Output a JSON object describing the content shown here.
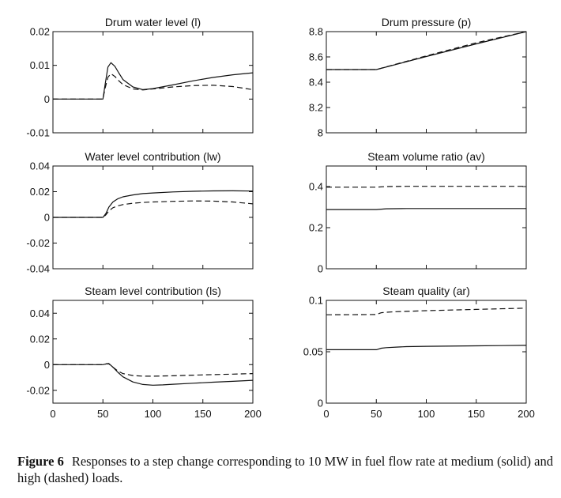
{
  "chart_data": [
    {
      "type": "line",
      "title": "Drum water level (l)",
      "xlim": [
        0,
        200
      ],
      "ylim": [
        -0.01,
        0.02
      ],
      "xticks": [],
      "yticks": [
        {
          "v": -0.01,
          "t": "-0.01"
        },
        {
          "v": 0,
          "t": "0"
        },
        {
          "v": 0.01,
          "t": "0.01"
        },
        {
          "v": 0.02,
          "t": "0.02"
        }
      ],
      "series": [
        {
          "style": "solid",
          "x": [
            0,
            50,
            52,
            55,
            58,
            62,
            66,
            70,
            80,
            90,
            100,
            120,
            140,
            160,
            180,
            200
          ],
          "y": [
            0,
            0,
            0.004,
            0.0095,
            0.0108,
            0.0097,
            0.0077,
            0.0058,
            0.0036,
            0.0028,
            0.0031,
            0.0042,
            0.0054,
            0.0064,
            0.0072,
            0.0078
          ]
        },
        {
          "style": "dashed",
          "x": [
            0,
            50,
            52,
            55,
            58,
            62,
            66,
            70,
            80,
            90,
            100,
            120,
            140,
            160,
            180,
            200
          ],
          "y": [
            0,
            0,
            0.003,
            0.0065,
            0.0075,
            0.0067,
            0.0054,
            0.0043,
            0.003,
            0.0027,
            0.003,
            0.0036,
            0.004,
            0.0041,
            0.0037,
            0.0028
          ]
        }
      ]
    },
    {
      "type": "line",
      "title": "Drum pressure (p)",
      "xlim": [
        0,
        200
      ],
      "ylim": [
        8,
        8.8
      ],
      "xticks": [],
      "yticks": [
        {
          "v": 8,
          "t": "8"
        },
        {
          "v": 8.2,
          "t": "8.2"
        },
        {
          "v": 8.4,
          "t": "8.4"
        },
        {
          "v": 8.6,
          "t": "8.6"
        },
        {
          "v": 8.8,
          "t": "8.8"
        }
      ],
      "series": [
        {
          "style": "solid",
          "x": [
            0,
            50,
            100,
            150,
            200
          ],
          "y": [
            8.5,
            8.5,
            8.603,
            8.703,
            8.8
          ]
        },
        {
          "style": "dashed",
          "x": [
            0,
            50,
            100,
            150,
            200
          ],
          "y": [
            8.5,
            8.5,
            8.608,
            8.712,
            8.81
          ]
        }
      ]
    },
    {
      "type": "line",
      "title": "Water level contribution (lw)",
      "xlim": [
        0,
        200
      ],
      "ylim": [
        -0.04,
        0.04
      ],
      "xticks": [],
      "yticks": [
        {
          "v": -0.04,
          "t": "-0.04"
        },
        {
          "v": -0.02,
          "t": "-0.02"
        },
        {
          "v": 0,
          "t": "0"
        },
        {
          "v": 0.02,
          "t": "0.02"
        },
        {
          "v": 0.04,
          "t": "0.04"
        }
      ],
      "series": [
        {
          "style": "solid",
          "x": [
            0,
            50,
            53,
            56,
            60,
            65,
            70,
            80,
            90,
            100,
            120,
            140,
            160,
            180,
            200
          ],
          "y": [
            0,
            0,
            0.003,
            0.008,
            0.012,
            0.0145,
            0.016,
            0.0175,
            0.0185,
            0.019,
            0.0198,
            0.0203,
            0.0206,
            0.0207,
            0.0205
          ]
        },
        {
          "style": "dashed",
          "x": [
            0,
            50,
            53,
            56,
            60,
            65,
            70,
            80,
            90,
            100,
            120,
            140,
            160,
            180,
            200
          ],
          "y": [
            0,
            0,
            0.002,
            0.005,
            0.0075,
            0.009,
            0.01,
            0.011,
            0.0116,
            0.012,
            0.0125,
            0.0128,
            0.0127,
            0.012,
            0.0105
          ]
        }
      ]
    },
    {
      "type": "line",
      "title": "Steam volume ratio (av)",
      "xlim": [
        0,
        200
      ],
      "ylim": [
        0,
        0.5
      ],
      "xticks": [],
      "yticks": [
        {
          "v": 0,
          "t": "0"
        },
        {
          "v": 0.2,
          "t": "0.2"
        },
        {
          "v": 0.4,
          "t": "0.4"
        }
      ],
      "series": [
        {
          "style": "solid",
          "x": [
            0,
            50,
            60,
            80,
            100,
            150,
            200
          ],
          "y": [
            0.288,
            0.288,
            0.292,
            0.293,
            0.293,
            0.293,
            0.293
          ]
        },
        {
          "style": "dashed",
          "x": [
            0,
            50,
            60,
            80,
            100,
            150,
            200
          ],
          "y": [
            0.397,
            0.397,
            0.4,
            0.401,
            0.401,
            0.401,
            0.401
          ]
        }
      ]
    },
    {
      "type": "line",
      "title": "Steam level contribution (ls)",
      "xlim": [
        0,
        200
      ],
      "ylim": [
        -0.03,
        0.05
      ],
      "xticks": [
        {
          "v": 0,
          "t": "0"
        },
        {
          "v": 50,
          "t": "50"
        },
        {
          "v": 100,
          "t": "100"
        },
        {
          "v": 150,
          "t": "150"
        },
        {
          "v": 200,
          "t": "200"
        }
      ],
      "yticks": [
        {
          "v": -0.02,
          "t": "-0.02"
        },
        {
          "v": 0,
          "t": "0"
        },
        {
          "v": 0.02,
          "t": "0.02"
        },
        {
          "v": 0.04,
          "t": "0.04"
        }
      ],
      "series": [
        {
          "style": "solid",
          "x": [
            0,
            50,
            53,
            56,
            60,
            65,
            70,
            80,
            90,
            100,
            110,
            120,
            140,
            160,
            180,
            200
          ],
          "y": [
            0,
            0,
            0.0005,
            0.0008,
            -0.002,
            -0.006,
            -0.0095,
            -0.0135,
            -0.0155,
            -0.016,
            -0.0158,
            -0.0153,
            -0.0145,
            -0.0137,
            -0.013,
            -0.0122
          ]
        },
        {
          "style": "dashed",
          "x": [
            0,
            50,
            53,
            56,
            60,
            65,
            70,
            80,
            90,
            100,
            120,
            140,
            160,
            180,
            200
          ],
          "y": [
            0,
            0,
            0.0005,
            0.0005,
            -0.002,
            -0.005,
            -0.007,
            -0.0085,
            -0.009,
            -0.009,
            -0.0087,
            -0.0082,
            -0.0078,
            -0.0074,
            -0.007
          ]
        }
      ]
    },
    {
      "type": "line",
      "title": "Steam quality (ar)",
      "xlim": [
        0,
        200
      ],
      "ylim": [
        0,
        0.1
      ],
      "xticks": [
        {
          "v": 0,
          "t": "0"
        },
        {
          "v": 50,
          "t": "50"
        },
        {
          "v": 100,
          "t": "100"
        },
        {
          "v": 150,
          "t": "150"
        },
        {
          "v": 200,
          "t": "200"
        }
      ],
      "yticks": [
        {
          "v": 0,
          "t": "0"
        },
        {
          "v": 0.05,
          "t": "0.05"
        },
        {
          "v": 0.1,
          "t": "0.1"
        }
      ],
      "series": [
        {
          "style": "solid",
          "x": [
            0,
            50,
            55,
            60,
            70,
            80,
            100,
            150,
            200
          ],
          "y": [
            0.052,
            0.052,
            0.0535,
            0.054,
            0.0545,
            0.055,
            0.0553,
            0.0558,
            0.0562
          ]
        },
        {
          "style": "dashed",
          "x": [
            0,
            50,
            55,
            60,
            70,
            80,
            100,
            150,
            200
          ],
          "y": [
            0.086,
            0.0862,
            0.088,
            0.0885,
            0.089,
            0.0893,
            0.09,
            0.0912,
            0.0925
          ]
        }
      ]
    }
  ],
  "caption": {
    "label": "Figure 6",
    "text": "Responses to a step change corresponding to 10 MW in fuel flow rate at medium (solid) and high (dashed) loads."
  }
}
